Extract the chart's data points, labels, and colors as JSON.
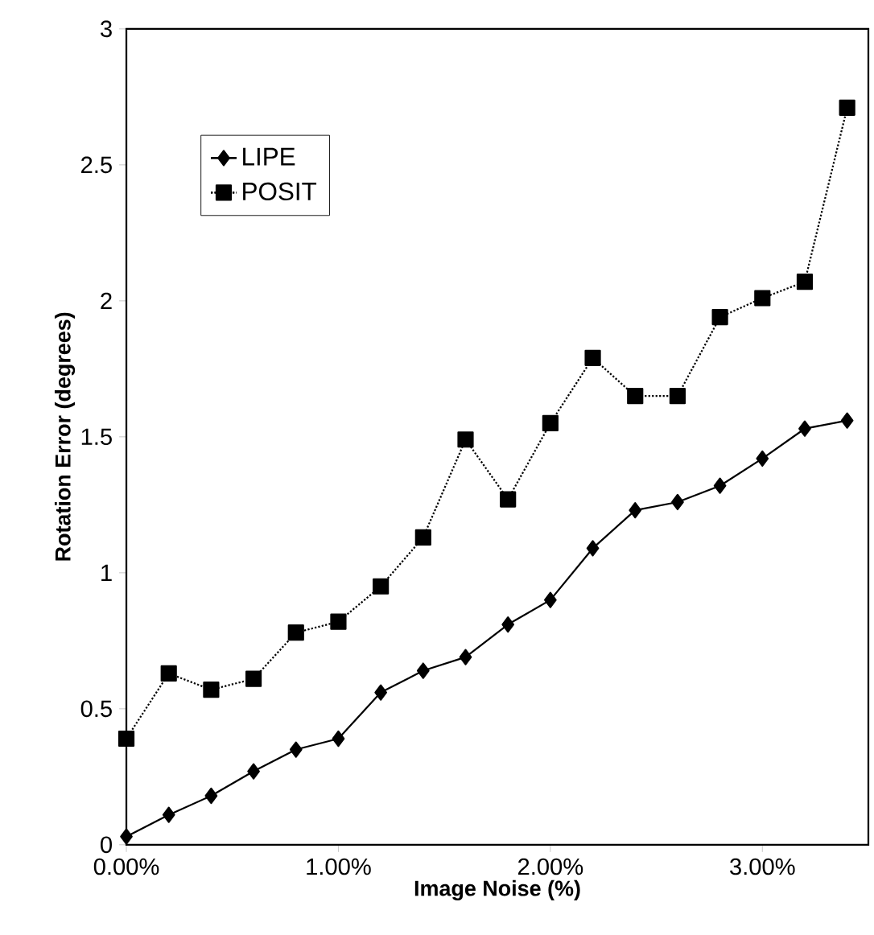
{
  "chart_data": {
    "type": "line",
    "xlabel": "Image Noise (%)",
    "ylabel": "Rotation Error (degrees)",
    "x": [
      0,
      0.2,
      0.4,
      0.6,
      0.8,
      1.0,
      1.2,
      1.4,
      1.6,
      1.8,
      2.0,
      2.2,
      2.4,
      2.6,
      2.8,
      3.0,
      3.2,
      3.4
    ],
    "series": [
      {
        "name": "LIPE",
        "color": "#000000",
        "marker": "diamond",
        "line_style": "solid",
        "values": [
          0.03,
          0.11,
          0.18,
          0.27,
          0.35,
          0.39,
          0.56,
          0.64,
          0.69,
          0.81,
          0.9,
          1.09,
          1.23,
          1.26,
          1.32,
          1.42,
          1.53,
          1.56
        ]
      },
      {
        "name": "POSIT",
        "color": "#000000",
        "marker": "square",
        "line_style": "dotted",
        "values": [
          0.39,
          0.63,
          0.57,
          0.61,
          0.78,
          0.82,
          0.95,
          1.13,
          1.49,
          1.27,
          1.55,
          1.79,
          1.65,
          1.65,
          1.94,
          2.01,
          2.07,
          2.71
        ]
      }
    ],
    "xlim": [
      0,
      3.5
    ],
    "ylim": [
      0,
      3
    ],
    "xticks": [
      {
        "value": 0,
        "label": "0.00%"
      },
      {
        "value": 1,
        "label": "1.00%"
      },
      {
        "value": 2,
        "label": "2.00%"
      },
      {
        "value": 3,
        "label": "3.00%"
      }
    ],
    "yticks": [
      0,
      0.5,
      1,
      1.5,
      2,
      2.5,
      3
    ],
    "legend": "top left",
    "grid": false
  }
}
